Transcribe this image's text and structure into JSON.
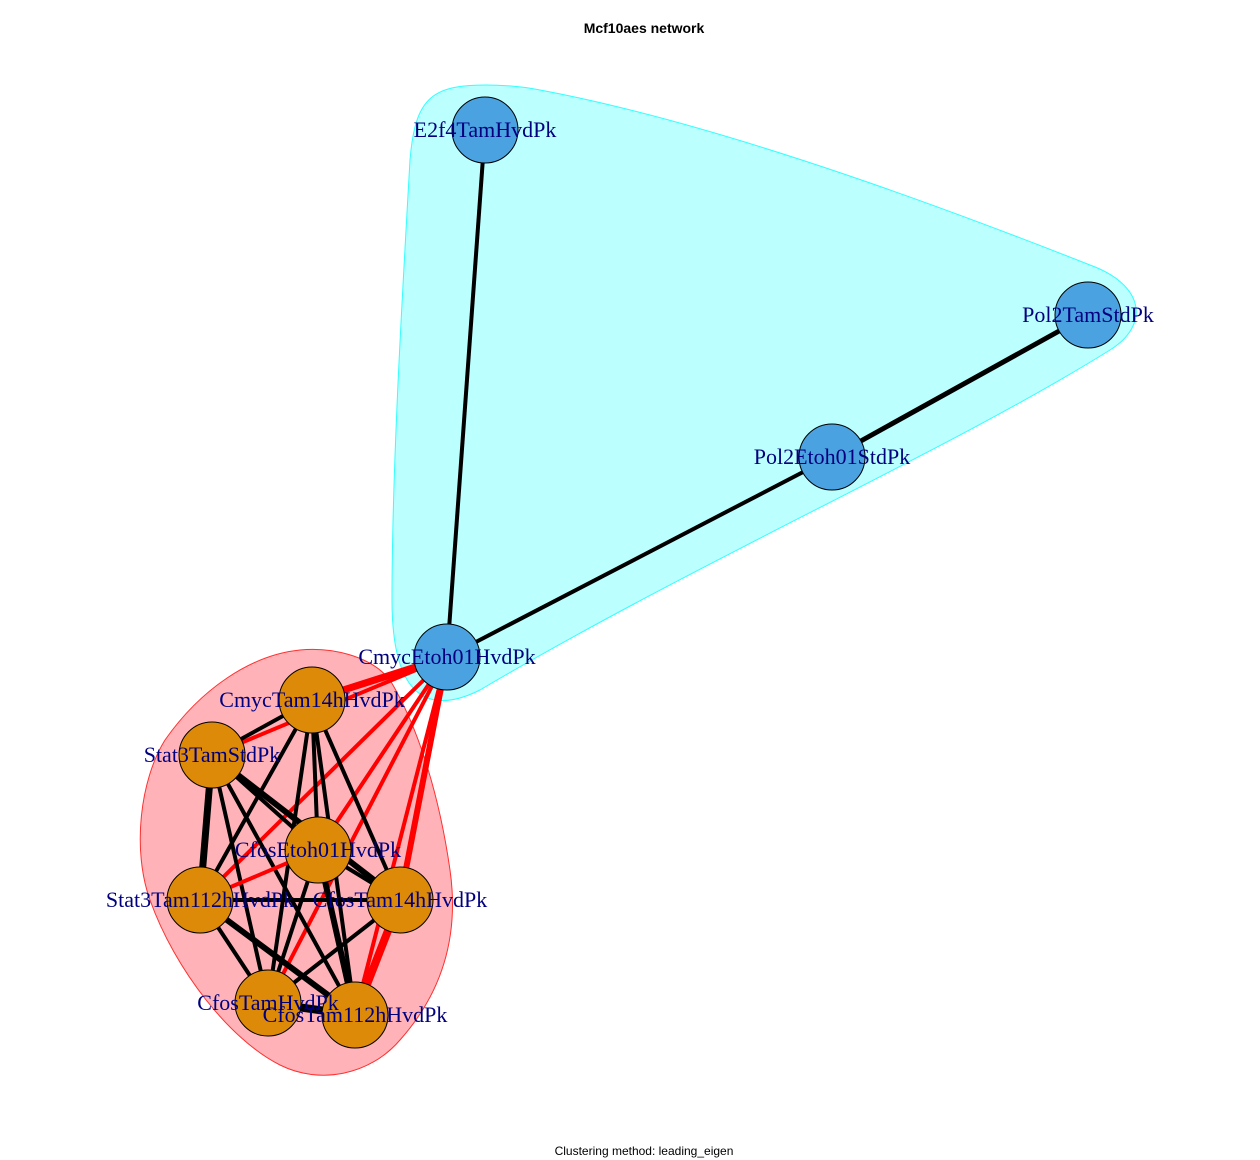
{
  "title": "Mcf10aes network",
  "subtitle": "Clustering method: leading_eigen",
  "colors": {
    "cluster_blue_fill": "#bbffff",
    "cluster_blue_stroke": "#33ffff",
    "cluster_red_fill": "#ffb3b8",
    "cluster_red_stroke": "#ff3030",
    "node_blue": "#4aa3e0",
    "node_orange": "#dd8a08",
    "edge_black": "#000000",
    "edge_red": "#ff0000",
    "label": "#00007f"
  },
  "nodes": [
    {
      "id": "E2f4TamHvdPk",
      "label": "E2f4TamHvdPk",
      "cluster": "blue"
    },
    {
      "id": "Pol2TamStdPk",
      "label": "Pol2TamStdPk",
      "cluster": "blue"
    },
    {
      "id": "Pol2Etoh01StdPk",
      "label": "Pol2Etoh01StdPk",
      "cluster": "blue"
    },
    {
      "id": "CmycEtoh01HvdPk",
      "label": "CmycEtoh01HvdPk",
      "cluster": "blue"
    },
    {
      "id": "CmycTam14hHvdPk",
      "label": "CmycTam14hHvdPk",
      "cluster": "red"
    },
    {
      "id": "Stat3TamStdPk",
      "label": "Stat3TamStdPk",
      "cluster": "red"
    },
    {
      "id": "CfosEtoh01HvdPk",
      "label": "CfosEtoh01HvdPk",
      "cluster": "red"
    },
    {
      "id": "Stat3Tam112hHvdPk",
      "label": "Stat3Tam112hHvdPk",
      "cluster": "red"
    },
    {
      "id": "CfosTam14hHvdPk",
      "label": "CfosTam14hHvdPk",
      "cluster": "red"
    },
    {
      "id": "CfosTamHvdPk",
      "label": "CfosTamHvdPk",
      "cluster": "red"
    },
    {
      "id": "CfosTam112hHvdPk",
      "label": "CfosTam112hHvdPk",
      "cluster": "red"
    }
  ],
  "edges": [
    {
      "source": "E2f4TamHvdPk",
      "target": "CmycEtoh01HvdPk",
      "color": "black"
    },
    {
      "source": "Pol2TamStdPk",
      "target": "Pol2Etoh01StdPk",
      "color": "black"
    },
    {
      "source": "Pol2Etoh01StdPk",
      "target": "CmycEtoh01HvdPk",
      "color": "black"
    },
    {
      "source": "CmycEtoh01HvdPk",
      "target": "CmycTam14hHvdPk",
      "color": "red"
    },
    {
      "source": "CmycEtoh01HvdPk",
      "target": "Stat3TamStdPk",
      "color": "red"
    },
    {
      "source": "CmycEtoh01HvdPk",
      "target": "CfosEtoh01HvdPk",
      "color": "red"
    },
    {
      "source": "CmycEtoh01HvdPk",
      "target": "Stat3Tam112hHvdPk",
      "color": "red"
    },
    {
      "source": "CmycEtoh01HvdPk",
      "target": "CfosTam14hHvdPk",
      "color": "red"
    },
    {
      "source": "CmycEtoh01HvdPk",
      "target": "CfosTamHvdPk",
      "color": "red"
    },
    {
      "source": "CmycEtoh01HvdPk",
      "target": "CfosTam112hHvdPk",
      "color": "red"
    },
    {
      "source": "CmycTam14hHvdPk",
      "target": "Stat3TamStdPk",
      "color": "black"
    },
    {
      "source": "CmycTam14hHvdPk",
      "target": "CfosEtoh01HvdPk",
      "color": "black"
    },
    {
      "source": "CmycTam14hHvdPk",
      "target": "Stat3Tam112hHvdPk",
      "color": "black"
    },
    {
      "source": "CmycTam14hHvdPk",
      "target": "CfosTam14hHvdPk",
      "color": "black"
    },
    {
      "source": "CmycTam14hHvdPk",
      "target": "CfosTamHvdPk",
      "color": "black"
    },
    {
      "source": "CmycTam14hHvdPk",
      "target": "CfosTam112hHvdPk",
      "color": "black"
    },
    {
      "source": "Stat3TamStdPk",
      "target": "CfosEtoh01HvdPk",
      "color": "black"
    },
    {
      "source": "Stat3TamStdPk",
      "target": "Stat3Tam112hHvdPk",
      "color": "black"
    },
    {
      "source": "Stat3TamStdPk",
      "target": "CfosTam14hHvdPk",
      "color": "black"
    },
    {
      "source": "Stat3TamStdPk",
      "target": "CfosTamHvdPk",
      "color": "black"
    },
    {
      "source": "Stat3TamStdPk",
      "target": "CfosTam112hHvdPk",
      "color": "black"
    },
    {
      "source": "CfosEtoh01HvdPk",
      "target": "Stat3Tam112hHvdPk",
      "color": "red"
    },
    {
      "source": "CfosEtoh01HvdPk",
      "target": "CfosTam14hHvdPk",
      "color": "black"
    },
    {
      "source": "CfosEtoh01HvdPk",
      "target": "CfosTamHvdPk",
      "color": "black"
    },
    {
      "source": "CfosEtoh01HvdPk",
      "target": "CfosTam112hHvdPk",
      "color": "black"
    },
    {
      "source": "Stat3Tam112hHvdPk",
      "target": "CfosTam14hHvdPk",
      "color": "black"
    },
    {
      "source": "Stat3Tam112hHvdPk",
      "target": "CfosTamHvdPk",
      "color": "black"
    },
    {
      "source": "Stat3Tam112hHvdPk",
      "target": "CfosTam112hHvdPk",
      "color": "black"
    },
    {
      "source": "CfosTam14hHvdPk",
      "target": "CfosTamHvdPk",
      "color": "black"
    },
    {
      "source": "CfosTam14hHvdPk",
      "target": "CfosTam112hHvdPk",
      "color": "red"
    },
    {
      "source": "CfosTamHvdPk",
      "target": "CfosTam112hHvdPk",
      "color": "black"
    }
  ]
}
